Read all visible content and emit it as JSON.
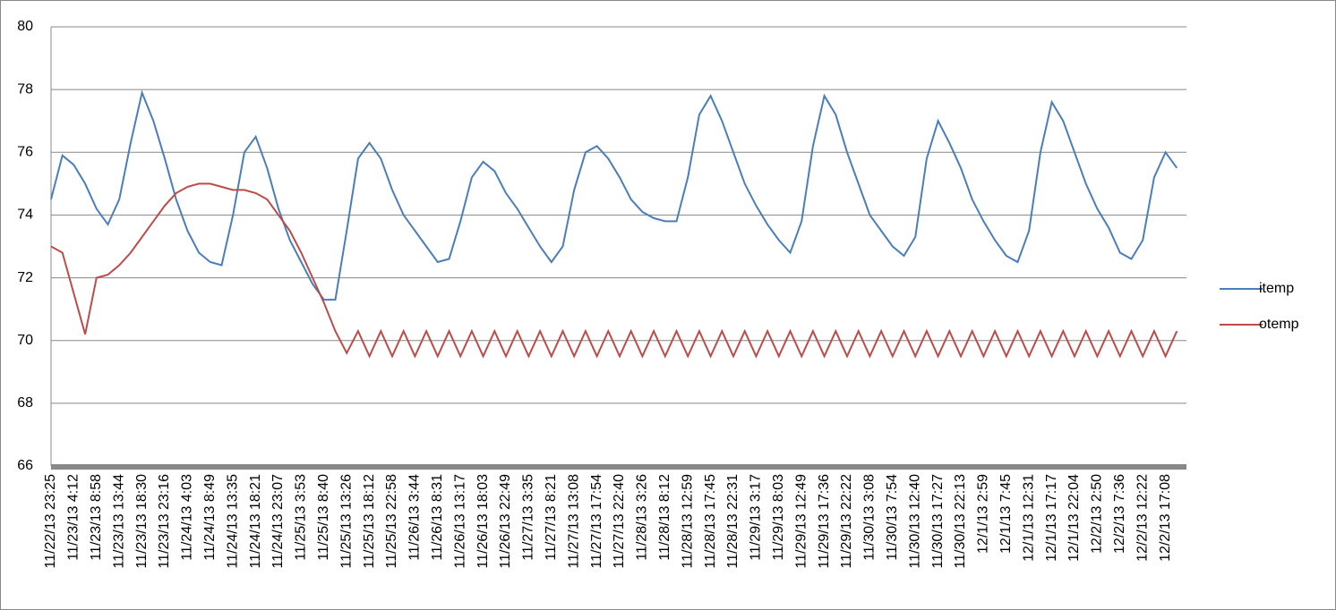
{
  "chart_data": {
    "type": "line",
    "categories": [
      "11/22/13 23:25",
      null,
      "11/23/13 4:12",
      null,
      "11/23/13 8:58",
      null,
      "11/23/13 13:44",
      null,
      "11/23/13 18:30",
      null,
      "11/23/13 23:16",
      null,
      "11/24/13 4:03",
      null,
      "11/24/13 8:49",
      null,
      "11/24/13 13:35",
      null,
      "11/24/13 18:21",
      null,
      "11/24/13 23:07",
      null,
      "11/25/13 3:53",
      null,
      "11/25/13 8:40",
      null,
      "11/25/13 13:26",
      null,
      "11/25/13 18:12",
      null,
      "11/25/13 22:58",
      null,
      "11/26/13 3:44",
      null,
      "11/26/13 8:31",
      null,
      "11/26/13 13:17",
      null,
      "11/26/13 18:03",
      null,
      "11/26/13 22:49",
      null,
      "11/27/13 3:35",
      null,
      "11/27/13 8:21",
      null,
      "11/27/13 13:08",
      null,
      "11/27/13 17:54",
      null,
      "11/27/13 22:40",
      null,
      "11/28/13 3:26",
      null,
      "11/28/13 8:12",
      null,
      "11/28/13 12:59",
      null,
      "11/28/13 17:45",
      null,
      "11/28/13 22:31",
      null,
      "11/29/13 3:17",
      null,
      "11/29/13 8:03",
      null,
      "11/29/13 12:49",
      null,
      "11/29/13 17:36",
      null,
      "11/29/13 22:22",
      null,
      "11/30/13 3:08",
      null,
      "11/30/13 7:54",
      null,
      "11/30/13 12:40",
      null,
      "11/30/13 17:27",
      null,
      "11/30/13 22:13",
      null,
      "12/1/13 2:59",
      null,
      "12/1/13 7:45",
      null,
      "12/1/13 12:31",
      null,
      "12/1/13 17:17",
      null,
      "12/1/13 22:04",
      null,
      "12/2/13 2:50",
      null,
      "12/2/13 7:36",
      null,
      "12/2/13 12:22",
      null,
      "12/2/13 17:08",
      null
    ],
    "series": [
      {
        "name": "itemp",
        "color": "#4a7ebb",
        "values": [
          74.5,
          75.9,
          75.6,
          75.0,
          74.2,
          73.7,
          74.5,
          76.3,
          77.9,
          77.0,
          75.8,
          74.5,
          73.5,
          72.8,
          72.5,
          72.4,
          74.0,
          76.0,
          76.5,
          75.5,
          74.2,
          73.2,
          72.5,
          71.8,
          71.3,
          71.3,
          73.5,
          75.8,
          76.3,
          75.8,
          74.8,
          74.0,
          73.5,
          73.0,
          72.5,
          72.6,
          73.8,
          75.2,
          75.7,
          75.4,
          74.7,
          74.2,
          73.6,
          73.0,
          72.5,
          73.0,
          74.8,
          76.0,
          76.2,
          75.8,
          75.2,
          74.5,
          74.1,
          73.9,
          73.8,
          73.8,
          75.2,
          77.2,
          77.8,
          77.0,
          76.0,
          75.0,
          74.3,
          73.7,
          73.2,
          72.8,
          73.8,
          76.2,
          77.8,
          77.2,
          76.0,
          75.0,
          74.0,
          73.5,
          73.0,
          72.7,
          73.3,
          75.8,
          77.0,
          76.3,
          75.5,
          74.5,
          73.8,
          73.2,
          72.7,
          72.5,
          73.5,
          76.0,
          77.6,
          77.0,
          76.0,
          75.0,
          74.2,
          73.6,
          72.8,
          72.6,
          73.2,
          75.2,
          76.0,
          75.5
        ]
      },
      {
        "name": "otemp",
        "color": "#be4b48",
        "values": [
          73.0,
          72.8,
          71.5,
          70.2,
          72.0,
          72.1,
          72.4,
          72.8,
          73.3,
          73.8,
          74.3,
          74.7,
          74.9,
          75.0,
          75.0,
          74.9,
          74.8,
          74.8,
          74.7,
          74.5,
          74.0,
          73.5,
          72.8,
          72.0,
          71.2,
          70.3,
          69.6,
          70.3,
          69.5,
          70.3,
          69.5,
          70.3,
          69.5,
          70.3,
          69.5,
          70.3,
          69.5,
          70.3,
          69.5,
          70.3,
          69.5,
          70.3,
          69.5,
          70.3,
          69.5,
          70.3,
          69.5,
          70.3,
          69.5,
          70.3,
          69.5,
          70.3,
          69.5,
          70.3,
          69.5,
          70.3,
          69.5,
          70.3,
          69.5,
          70.3,
          69.5,
          70.3,
          69.5,
          70.3,
          69.5,
          70.3,
          69.5,
          70.3,
          69.5,
          70.3,
          69.5,
          70.3,
          69.5,
          70.3,
          69.5,
          70.3,
          69.5,
          70.3,
          69.5,
          70.3,
          69.5,
          70.3,
          69.5,
          70.3,
          69.5,
          70.3,
          69.5,
          70.3,
          69.5,
          70.3,
          69.5,
          70.3,
          69.5,
          70.3,
          69.5,
          70.3,
          69.5,
          70.3,
          69.5,
          70.3
        ]
      }
    ],
    "ylim": [
      66,
      80
    ],
    "yticks": [
      66,
      68,
      70,
      72,
      74,
      76,
      78,
      80
    ],
    "grid": true,
    "legend": "right"
  }
}
